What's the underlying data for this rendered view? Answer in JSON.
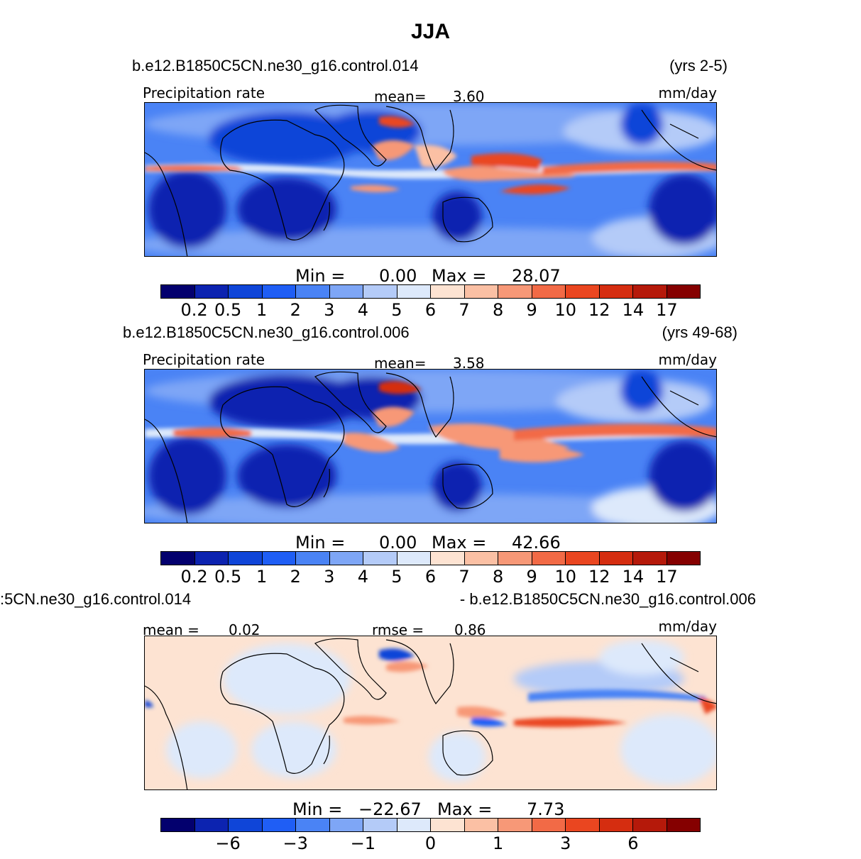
{
  "title": "JJA",
  "colors": {
    "precip": [
      "#03006e",
      "#0c23b0",
      "#0f45d8",
      "#1f5ef5",
      "#4a83f5",
      "#7ea6f6",
      "#b4cbf8",
      "#dde9fb",
      "#fde3d2",
      "#fbc0a4",
      "#f79877",
      "#f26a46",
      "#ea4620",
      "#d52d10",
      "#b5190a",
      "#850000"
    ],
    "diff": [
      "#03006e",
      "#0c23b0",
      "#0f45d8",
      "#1f5ef5",
      "#4a83f5",
      "#7ea6f6",
      "#b4cbf8",
      "#dde9fb",
      "#fde3d2",
      "#fbc0a4",
      "#f79877",
      "#f26a46",
      "#ea4620",
      "#d52d10",
      "#b5190a",
      "#850000"
    ]
  },
  "panels": [
    {
      "case": "b.e12.B1850C5CN.ne30_g16.control.014",
      "years": "(yrs 2-5)",
      "variable": "Precipitation  rate",
      "mean_label": "mean=",
      "mean_value": "3.60",
      "units": "mm/day",
      "min_label": "Min  =",
      "min_value": "0.00",
      "max_label": "Max  =",
      "max_value": "28.07",
      "ticks": [
        "0.2",
        "0.5",
        "1",
        "2",
        "3",
        "4",
        "5",
        "6",
        "7",
        "8",
        "9",
        "10",
        "12",
        "14",
        "17"
      ]
    },
    {
      "case": "b.e12.B1850C5CN.ne30_g16.control.006",
      "years": "(yrs 49-68)",
      "variable": "Precipitation  rate",
      "mean_label": "mean=",
      "mean_value": "3.58",
      "units": "mm/day",
      "min_label": "Min  =",
      "min_value": "0.00",
      "max_label": "Max  =",
      "max_value": "42.66",
      "ticks": [
        "0.2",
        "0.5",
        "1",
        "2",
        "3",
        "4",
        "5",
        "6",
        "7",
        "8",
        "9",
        "10",
        "12",
        "14",
        "17"
      ]
    },
    {
      "case_left": ":5CN.ne30_g16.control.014",
      "case_right": "- b.e12.B1850C5CN.ne30_g16.control.006",
      "mean_label": "mean =",
      "mean_value": "0.02",
      "rmse_label": "rmse  =",
      "rmse_value": "0.86",
      "units": "mm/day",
      "min_label": "Min  =",
      "min_value": "−22.67",
      "max_label": "Max  =",
      "max_value": "7.73",
      "ticks": [
        "−6",
        "−3",
        "−1",
        "0",
        "1",
        "3",
        "6"
      ]
    }
  ]
}
